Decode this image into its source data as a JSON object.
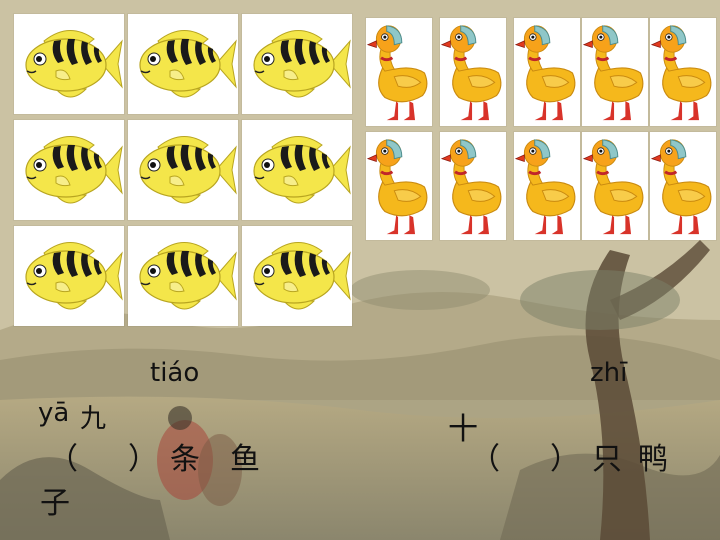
{
  "scene": {
    "fish_count": 9,
    "duck_count": 10,
    "fish_icon": "yellow-striped-fish-icon",
    "duck_icon": "yellow-duck-icon",
    "colors": {
      "fish_body": "#f4e64a",
      "fish_stripe": "#1a1a1a",
      "duck_body": "#f5b81c",
      "duck_head": "#f7a21a",
      "duck_beak": "#e23a1f",
      "duck_legs": "#d8332a",
      "tile_bg": "#ffffff"
    }
  },
  "left_problem": {
    "pinyin_ya": "yā",
    "char_jiu": "九",
    "pinyin_tiao": "tiáo",
    "open_paren": "（",
    "close_paren": "）",
    "char_tiao": "条",
    "char_yu": "鱼",
    "char_zi": "子"
  },
  "right_problem": {
    "char_shi": "十",
    "pinyin_zhi": "zhī",
    "open_paren": "（",
    "close_paren": "）",
    "char_zhi": "只",
    "char_ya": "鸭"
  }
}
